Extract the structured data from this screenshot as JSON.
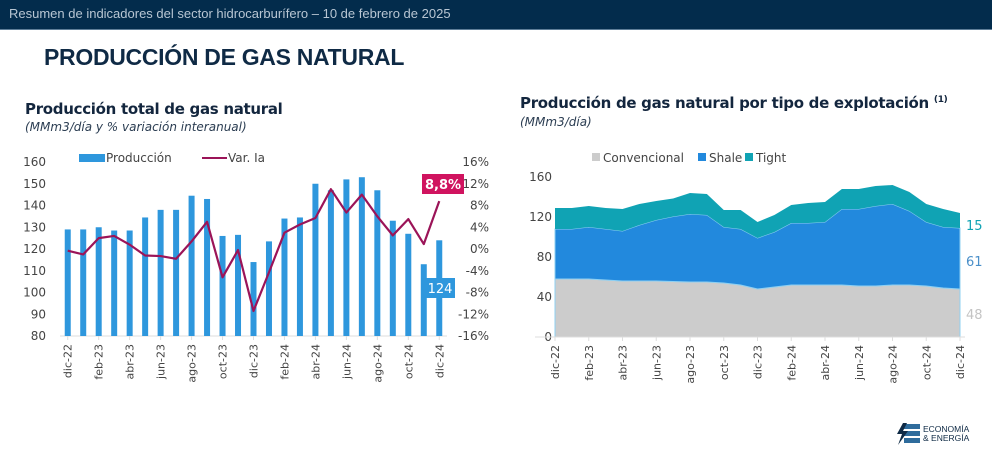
{
  "header": {
    "text": "Resumen de indicadores del sector hidrocarburífero  – 10 de febrero de 2025",
    "title": "PRODUCCIÓN DE GAS NATURAL"
  },
  "logo": {
    "line1": "ECONOMÍA",
    "line2": "& ENERGÍA",
    "icon": "lightning-bolt-icon"
  },
  "colors": {
    "bar": "#2e97dd",
    "line": "#9b1458",
    "label_pink": "#d0135f",
    "label_blue": "#2e97dd",
    "convencional": "#cccccc",
    "shale": "#2289dd",
    "tight": "#10a3b4"
  },
  "chart_data": [
    {
      "type": "bar",
      "title": "Producción total de gas natural",
      "subtitle": "(MMm3/día y % variación interanual)",
      "legend": [
        "Producción",
        "Var. Ia"
      ],
      "legend_position": "top",
      "categories": [
        "dic-22",
        "ene-23",
        "feb-23",
        "mar-23",
        "abr-23",
        "may-23",
        "jun-23",
        "jul-23",
        "ago-23",
        "sep-23",
        "oct-23",
        "nov-23",
        "dic-23",
        "ene-24",
        "feb-24",
        "mar-24",
        "abr-24",
        "may-24",
        "jun-24",
        "jul-24",
        "ago-24",
        "sep-24",
        "oct-24",
        "nov-24",
        "dic-24"
      ],
      "tick_labels": [
        "dic-22",
        "feb-23",
        "abr-23",
        "jun-23",
        "ago-23",
        "oct-23",
        "dic-23",
        "feb-24",
        "abr-24",
        "jun-24",
        "ago-24",
        "oct-24",
        "dic-24"
      ],
      "series": [
        {
          "name": "Producción",
          "axis": "left",
          "kind": "bar",
          "values": [
            129,
            129,
            130,
            128.5,
            128.5,
            134.5,
            138,
            138,
            144.5,
            143,
            126,
            126.5,
            114,
            123.5,
            134,
            134.5,
            150,
            147,
            152,
            153,
            147,
            133,
            127,
            113,
            124
          ]
        },
        {
          "name": "Var. Ia",
          "axis": "right",
          "kind": "line",
          "values": [
            -0.3,
            -1,
            2,
            2.4,
            0.8,
            -1.2,
            -1.3,
            -1.8,
            1.4,
            5,
            -5.2,
            -0.2,
            -11.4,
            -4.3,
            3,
            4.5,
            5.7,
            11,
            6.7,
            10,
            6,
            2.5,
            5.5,
            0.9,
            8.8
          ]
        }
      ],
      "yleft": {
        "min": 80,
        "max": 160,
        "ticks": [
          80,
          90,
          100,
          110,
          120,
          130,
          140,
          150,
          160
        ]
      },
      "yright": {
        "min": -16,
        "max": 16,
        "ticks": [
          "-16%",
          "-12%",
          "-8%",
          "-4%",
          "0%",
          "4%",
          "8%",
          "12%",
          "16%"
        ]
      },
      "annotations": [
        {
          "text": "8,8%",
          "series": "Var. Ia"
        },
        {
          "text": "124",
          "series": "Producción"
        }
      ]
    },
    {
      "type": "area",
      "title": "Producción de gas natural por tipo de explotación",
      "title_sup": "(1)",
      "subtitle": "(MMm3/día)",
      "legend": [
        "Convencional",
        "Shale",
        "Tight"
      ],
      "legend_position": "top",
      "categories": [
        "dic-22",
        "ene-23",
        "feb-23",
        "mar-23",
        "abr-23",
        "may-23",
        "jun-23",
        "jul-23",
        "ago-23",
        "sep-23",
        "oct-23",
        "nov-23",
        "dic-23",
        "ene-24",
        "feb-24",
        "mar-24",
        "abr-24",
        "may-24",
        "jun-24",
        "jul-24",
        "ago-24",
        "sep-24",
        "oct-24",
        "nov-24",
        "dic-24"
      ],
      "tick_labels": [
        "dic-22",
        "feb-23",
        "abr-23",
        "jun-23",
        "ago-23",
        "oct-23",
        "dic-23",
        "feb-24",
        "abr-24",
        "jun-24",
        "ago-24",
        "oct-24",
        "dic-24"
      ],
      "series": [
        {
          "name": "Convencional",
          "values": [
            58,
            58,
            58,
            57,
            56,
            56,
            56,
            55.5,
            55,
            55,
            54,
            52,
            48,
            50,
            52,
            52,
            52,
            52,
            51,
            51,
            52,
            52,
            51,
            49,
            48
          ]
        },
        {
          "name": "Shale",
          "values": [
            50,
            50,
            52,
            51,
            50,
            56,
            61,
            65,
            68,
            67,
            56,
            56,
            51,
            55,
            62,
            62,
            63,
            76,
            77,
            80,
            81,
            74,
            64,
            61,
            61
          ]
        },
        {
          "name": "Tight",
          "values": [
            21,
            21,
            21,
            21,
            22,
            21,
            19,
            18,
            21,
            21,
            17,
            19,
            16,
            17,
            18,
            20,
            20,
            20,
            20,
            20,
            19,
            19,
            18,
            18,
            15
          ]
        }
      ],
      "ylim": [
        0,
        160
      ],
      "yticks": [
        0,
        40,
        80,
        120,
        160
      ],
      "end_labels": [
        "15",
        "61",
        "48"
      ]
    }
  ]
}
